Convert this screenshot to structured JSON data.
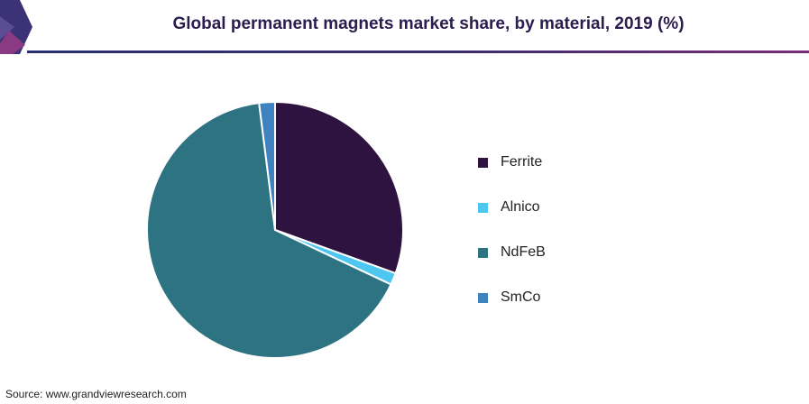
{
  "header": {
    "title": "Global permanent magnets market share, by material, 2019 (%)"
  },
  "chart_data": {
    "type": "pie",
    "title": "Global permanent magnets market share, by material, 2019 (%)",
    "categories": [
      "Ferrite",
      "Alnico",
      "NdFeB",
      "SmCo"
    ],
    "values": [
      30.5,
      1.5,
      66.0,
      2.0
    ],
    "colors": [
      "#2e1240",
      "#4dc6f0",
      "#2d7382",
      "#3e82c0"
    ],
    "legend_position": "right",
    "start_angle_deg": 0,
    "direction": "clockwise"
  },
  "source": {
    "text": "Source: www.grandviewresearch.com"
  },
  "brand": {
    "accent": "#2a2f73",
    "accent2": "#7a2c78"
  }
}
